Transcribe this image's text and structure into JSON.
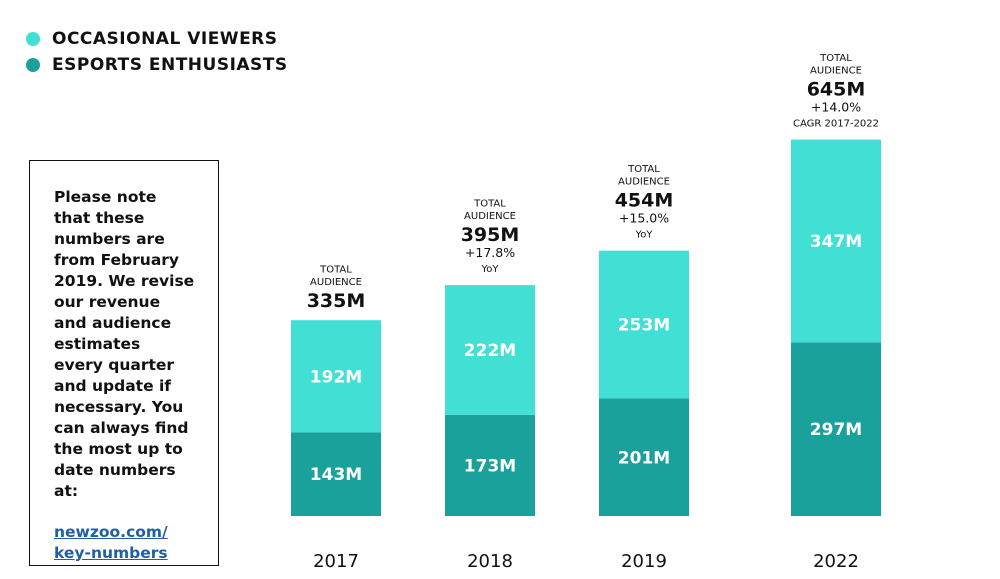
{
  "legend": {
    "occasional_label": "OCCASIONAL VIEWERS",
    "enthusiasts_label": "ESPORTS ENTHUSIASTS"
  },
  "note": {
    "text": "Please note\nthat these\nnumbers are\nfrom February\n2019. We revise\nour revenue\nand audience\nestimates\nevery quarter\nand update if\nnecessary. You\ncan always find\nthe most up to\ndate numbers at:",
    "link": "newzoo.com/\nkey-numbers"
  },
  "colors": {
    "occasional": "#42e0d4",
    "enthusiasts": "#1aa19b",
    "bar_label": "#ffffff",
    "text": "#111111"
  },
  "chart_data": {
    "type": "bar",
    "stacked": true,
    "categories": [
      "2017",
      "2018",
      "2019",
      "2022"
    ],
    "series": [
      {
        "name": "ESPORTS ENTHUSIASTS",
        "values": [
          143,
          173,
          201,
          297
        ],
        "labels": [
          "143M",
          "173M",
          "201M",
          "297M"
        ]
      },
      {
        "name": "OCCASIONAL VIEWERS",
        "values": [
          192,
          222,
          253,
          347
        ],
        "labels": [
          "192M",
          "222M",
          "253M",
          "347M"
        ]
      }
    ],
    "totals": [
      {
        "header": [
          "TOTAL",
          "AUDIENCE"
        ],
        "value": "335M",
        "growth": "",
        "note": ""
      },
      {
        "header": [
          "TOTAL",
          "AUDIENCE"
        ],
        "value": "395M",
        "growth": "+17.8%",
        "note": "YoY"
      },
      {
        "header": [
          "TOTAL",
          "AUDIENCE"
        ],
        "value": "454M",
        "growth": "+15.0%",
        "note": "YoY"
      },
      {
        "header": [
          "TOTAL",
          "AUDIENCE"
        ],
        "value": "645M",
        "growth": "+14.0%",
        "note": "CAGR 2017-2022"
      }
    ],
    "unit": "M",
    "ylim": [
      0,
      645
    ],
    "title": "",
    "xlabel": "",
    "ylabel": ""
  }
}
